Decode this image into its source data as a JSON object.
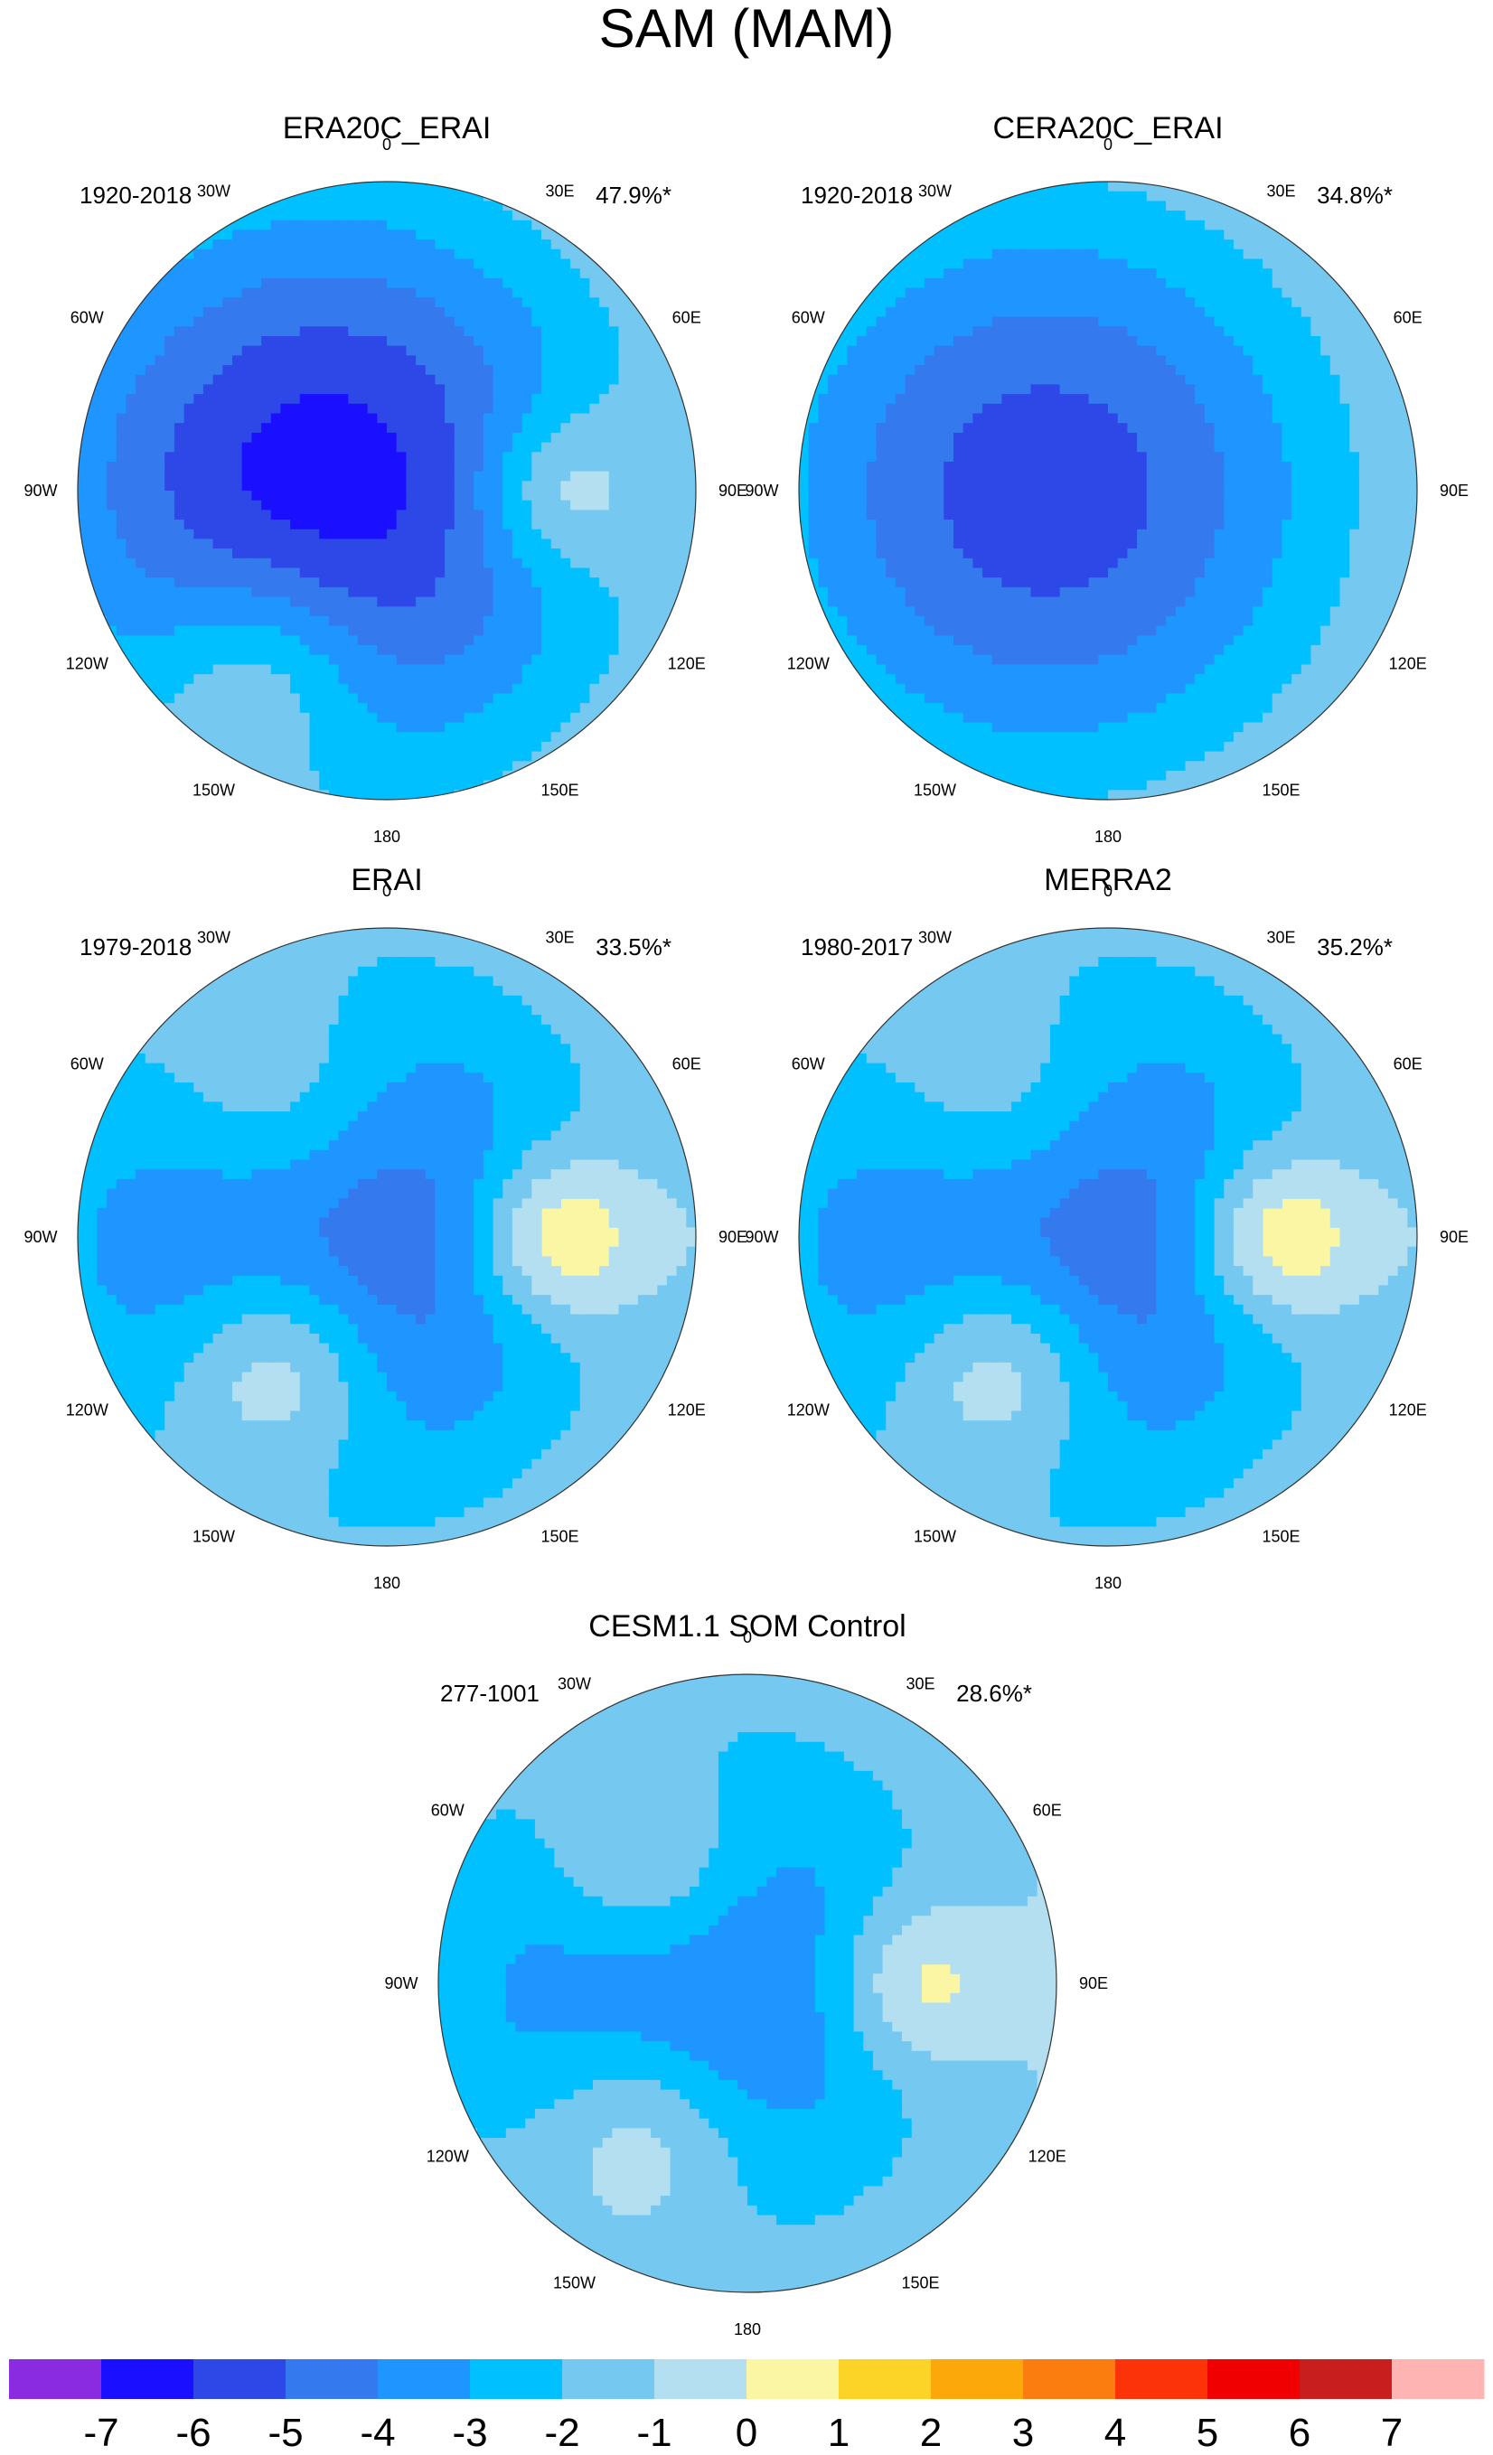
{
  "figure": {
    "title": "SAM (MAM)"
  },
  "chart_data": {
    "type": "heatmap",
    "projection": "south-polar-stereographic",
    "panels": [
      {
        "title": "ERA20C_ERAI",
        "period": "1920-2018",
        "explained_variance": "47.9%*",
        "features": [
          {
            "kind": "low",
            "level": -6,
            "sector": "Amundsen-Bellingshausen Sea",
            "lon": -90,
            "lat_rel": 0.2,
            "spread_deg": 70
          },
          {
            "kind": "high",
            "level": 2,
            "sector": "south Indian Ocean",
            "lon": 90,
            "lat_rel": 0.55,
            "spread_deg": 20
          },
          {
            "kind": "high",
            "level": 2,
            "sector": "south Pacific near New Zealand",
            "lon": -145,
            "lat_rel": 0.7,
            "spread_deg": 25
          }
        ]
      },
      {
        "title": "CERA20C_ERAI",
        "period": "1920-2018",
        "explained_variance": "34.8%*",
        "features": [
          {
            "kind": "low",
            "level": -5,
            "sector": "Amundsen-Bellingshausen Sea",
            "lon": -90,
            "lat_rel": 0.2,
            "spread_deg": 70
          }
        ]
      },
      {
        "title": "ERAI",
        "period": "1979-2018",
        "explained_variance": "33.5%*",
        "features": [
          {
            "kind": "low",
            "level": -5,
            "sector": "Amundsen-Bellingshausen Sea",
            "lon": -90,
            "lat_rel": 0.2,
            "spread_deg": 70
          },
          {
            "kind": "high",
            "level": 2,
            "sector": "south Atlantic",
            "lon": -40,
            "lat_rel": 0.55,
            "spread_deg": 30
          },
          {
            "kind": "high",
            "level": 3,
            "sector": "south Indian Ocean",
            "lon": 90,
            "lat_rel": 0.55,
            "spread_deg": 20
          },
          {
            "kind": "high",
            "level": 3,
            "sector": "south Pacific near New Zealand",
            "lon": -140,
            "lat_rel": 0.55,
            "spread_deg": 25
          }
        ]
      },
      {
        "title": "MERRA2",
        "period": "1980-2017",
        "explained_variance": "35.2%*",
        "features": [
          {
            "kind": "low",
            "level": -5,
            "sector": "Amundsen-Bellingshausen Sea",
            "lon": -90,
            "lat_rel": 0.2,
            "spread_deg": 70
          },
          {
            "kind": "high",
            "level": 2,
            "sector": "south Atlantic",
            "lon": -40,
            "lat_rel": 0.55,
            "spread_deg": 30
          },
          {
            "kind": "high",
            "level": 3,
            "sector": "south Indian Ocean",
            "lon": 90,
            "lat_rel": 0.55,
            "spread_deg": 20
          },
          {
            "kind": "high",
            "level": 3,
            "sector": "south Pacific near New Zealand",
            "lon": -140,
            "lat_rel": 0.55,
            "spread_deg": 25
          }
        ]
      },
      {
        "title": "CESM1.1 SOM Control",
        "period": "277-1001",
        "explained_variance": "28.6%*",
        "features": [
          {
            "kind": "low",
            "level": -4,
            "sector": "Amundsen-Bellingshausen Sea",
            "lon": -90,
            "lat_rel": 0.2,
            "spread_deg": 70
          },
          {
            "kind": "high",
            "level": 2,
            "sector": "south Atlantic",
            "lon": -40,
            "lat_rel": 0.5,
            "spread_deg": 25
          },
          {
            "kind": "high",
            "level": 2,
            "sector": "south Indian Ocean",
            "lon": 90,
            "lat_rel": 0.55,
            "spread_deg": 20
          },
          {
            "kind": "high",
            "level": 2,
            "sector": "south Pacific near New Zealand",
            "lon": -145,
            "lat_rel": 0.6,
            "spread_deg": 25
          }
        ]
      }
    ],
    "longitude_labels": [
      "0",
      "30E",
      "60E",
      "90E",
      "120E",
      "150E",
      "180",
      "150W",
      "120W",
      "90W",
      "60W",
      "30W"
    ],
    "colorbar": {
      "labels": [
        "-7",
        "-6",
        "-5",
        "-4",
        "-3",
        "-2",
        "-1",
        "0",
        "1",
        "2",
        "3",
        "4",
        "5",
        "6",
        "7"
      ],
      "colors": [
        "#8a2be2",
        "#1a10ff",
        "#2d48e6",
        "#3579ee",
        "#1e95ff",
        "#00c0ff",
        "#75c8f0",
        "#b3dff0",
        "#fbf6a3",
        "#fcd427",
        "#fca70a",
        "#fb7d10",
        "#fc3309",
        "#f00000",
        "#c81e1e",
        "#ffb4b4"
      ]
    }
  }
}
